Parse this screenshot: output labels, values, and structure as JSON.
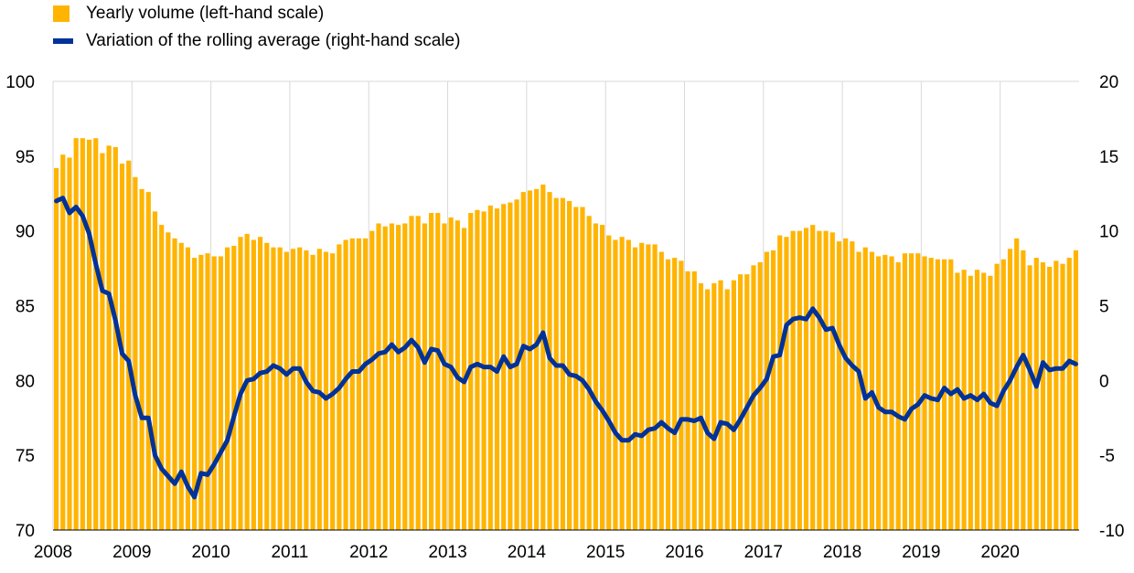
{
  "legend": {
    "bars_label": "Yearly volume (left-hand scale)",
    "line_label": "Variation of the rolling average (right-hand scale)"
  },
  "colors": {
    "bars": "#FFB400",
    "line": "#003299",
    "grid": "#d9d9d9"
  },
  "chart_data": {
    "type": "bar+line",
    "title": "",
    "grid": "vertical gridlines at year starts",
    "legend_position": "top-left",
    "x_start": "2008-01",
    "x_end": "2020-12",
    "frequency": "monthly",
    "xticks": [
      "2008",
      "2009",
      "2010",
      "2011",
      "2012",
      "2013",
      "2014",
      "2015",
      "2016",
      "2017",
      "2018",
      "2019",
      "2020"
    ],
    "y_left": {
      "min": 70,
      "max": 100,
      "ticks": [
        70,
        75,
        80,
        85,
        90,
        95,
        100
      ]
    },
    "y_right": {
      "min": -10,
      "max": 20,
      "ticks": [
        -10,
        -5,
        0,
        5,
        10,
        15,
        20
      ]
    },
    "series": [
      {
        "name": "Yearly volume (left-hand scale)",
        "axis": "left",
        "kind": "bar",
        "values": [
          94.2,
          95.1,
          94.9,
          96.2,
          96.2,
          96.1,
          96.2,
          95.2,
          95.7,
          95.6,
          94.5,
          94.7,
          93.6,
          92.8,
          92.6,
          91.3,
          90.4,
          89.9,
          89.5,
          89.2,
          88.9,
          88.2,
          88.4,
          88.5,
          88.3,
          88.3,
          88.9,
          89.0,
          89.6,
          89.8,
          89.4,
          89.6,
          89.2,
          88.9,
          88.9,
          88.6,
          88.8,
          88.9,
          88.7,
          88.4,
          88.8,
          88.6,
          88.5,
          89.1,
          89.4,
          89.5,
          89.5,
          89.5,
          90.0,
          90.5,
          90.3,
          90.5,
          90.4,
          90.5,
          91.0,
          91.0,
          90.5,
          91.2,
          91.2,
          90.5,
          90.9,
          90.7,
          90.2,
          91.2,
          91.4,
          91.3,
          91.7,
          91.5,
          91.8,
          91.9,
          92.1,
          92.6,
          92.7,
          92.8,
          93.1,
          92.6,
          92.2,
          92.2,
          92.0,
          91.6,
          91.6,
          91.0,
          90.5,
          90.4,
          89.7,
          89.4,
          89.6,
          89.4,
          88.9,
          89.2,
          89.1,
          89.1,
          88.6,
          88.1,
          88.2,
          88.0,
          87.3,
          87.3,
          86.5,
          86.1,
          86.5,
          86.7,
          86.1,
          86.7,
          87.1,
          87.1,
          87.7,
          87.9,
          88.6,
          88.7,
          89.7,
          89.6,
          90.0,
          90.0,
          90.2,
          90.4,
          90.0,
          90.0,
          89.9,
          89.3,
          89.5,
          89.3,
          88.6,
          88.9,
          88.6,
          88.3,
          88.4,
          88.3,
          87.9,
          88.5,
          88.5,
          88.5,
          88.3,
          88.2,
          88.1,
          88.1,
          88.1,
          87.2,
          87.4,
          87.0,
          87.4,
          87.2,
          87.0,
          87.8,
          88.1,
          88.8,
          89.5,
          88.7,
          87.7,
          88.2,
          87.9,
          87.6,
          88.0,
          87.8,
          88.2,
          88.7
        ]
      },
      {
        "name": "Variation of the rolling average (right-hand scale)",
        "axis": "right",
        "kind": "line",
        "values": [
          12.0,
          12.2,
          11.2,
          11.6,
          11.0,
          9.8,
          7.8,
          6.0,
          5.8,
          4.0,
          1.8,
          1.3,
          -1.0,
          -2.5,
          -2.5,
          -5.0,
          -5.9,
          -6.4,
          -6.9,
          -6.1,
          -7.1,
          -7.8,
          -6.2,
          -6.3,
          -5.6,
          -4.8,
          -4.0,
          -2.4,
          -0.9,
          0.0,
          0.1,
          0.5,
          0.6,
          1.0,
          0.8,
          0.4,
          0.8,
          0.8,
          -0.1,
          -0.7,
          -0.8,
          -1.2,
          -0.9,
          -0.5,
          0.1,
          0.6,
          0.6,
          1.1,
          1.4,
          1.8,
          1.9,
          2.4,
          1.9,
          2.2,
          2.7,
          2.2,
          1.2,
          2.1,
          2.0,
          1.1,
          0.9,
          0.2,
          -0.1,
          0.9,
          1.1,
          0.9,
          0.9,
          0.6,
          1.6,
          0.9,
          1.1,
          2.3,
          2.1,
          2.4,
          3.2,
          1.5,
          1.0,
          1.0,
          0.4,
          0.3,
          0.0,
          -0.6,
          -1.4,
          -2.0,
          -2.7,
          -3.5,
          -4.0,
          -4.0,
          -3.6,
          -3.7,
          -3.3,
          -3.2,
          -2.8,
          -3.2,
          -3.5,
          -2.6,
          -2.6,
          -2.7,
          -2.5,
          -3.5,
          -3.9,
          -2.8,
          -2.9,
          -3.3,
          -2.6,
          -1.8,
          -1.0,
          -0.5,
          0.1,
          1.6,
          1.7,
          3.7,
          4.1,
          4.2,
          4.1,
          4.8,
          4.2,
          3.4,
          3.5,
          2.4,
          1.5,
          1.0,
          0.6,
          -1.2,
          -0.8,
          -1.8,
          -2.1,
          -2.1,
          -2.4,
          -2.6,
          -1.9,
          -1.6,
          -1.0,
          -1.2,
          -1.3,
          -0.5,
          -0.9,
          -0.6,
          -1.2,
          -1.0,
          -1.3,
          -0.9,
          -1.5,
          -1.7,
          -0.7,
          0.0,
          0.9,
          1.7,
          0.7,
          -0.4,
          1.2,
          0.7,
          0.8,
          0.8,
          1.3,
          1.1
        ]
      }
    ]
  }
}
